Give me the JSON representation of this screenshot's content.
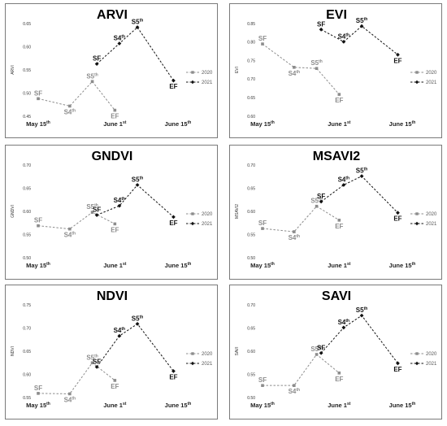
{
  "chart_data": [
    {
      "type": "line",
      "title": "ARVI",
      "ylabel": "ARVI",
      "ylim": [
        0.45,
        0.65
      ],
      "yticks": [
        "0.45",
        "0.50",
        "0.55",
        "0.60",
        "0.65"
      ],
      "x_ticks": [
        {
          "label": "May 15",
          "sup": "th",
          "x": 0
        },
        {
          "label": "June 1",
          "sup": "st",
          "x": 17
        },
        {
          "label": "June 15",
          "sup": "th",
          "x": 31
        }
      ],
      "legend": "right",
      "series": [
        {
          "name": "2020",
          "color": "#8c8c8c",
          "marker": "square",
          "points": [
            {
              "label": "SF",
              "sup": "",
              "x": 0,
              "y": 0.488
            },
            {
              "label": "S4",
              "sup": "th",
              "x": 7,
              "y": 0.472
            },
            {
              "label": "S5",
              "sup": "th",
              "x": 12,
              "y": 0.525
            },
            {
              "label": "EF",
              "sup": "",
              "x": 17,
              "y": 0.463
            }
          ]
        },
        {
          "name": "2021",
          "color": "#111111",
          "marker": "diamond",
          "points": [
            {
              "label": "SF",
              "sup": "",
              "x": 13,
              "y": 0.563
            },
            {
              "label": "S4",
              "sup": "th",
              "x": 18,
              "y": 0.607
            },
            {
              "label": "S5",
              "sup": "th",
              "x": 22,
              "y": 0.642
            },
            {
              "label": "EF",
              "sup": "",
              "x": 30,
              "y": 0.527
            }
          ]
        }
      ]
    },
    {
      "type": "line",
      "title": "EVI",
      "ylabel": "EVI",
      "ylim": [
        0.6,
        0.85
      ],
      "yticks": [
        "0.60",
        "0.65",
        "0.70",
        "0.75",
        "0.80",
        "0.85"
      ],
      "x_ticks": [
        {
          "label": "May 15",
          "sup": "th",
          "x": 0
        },
        {
          "label": "June 1",
          "sup": "st",
          "x": 17
        },
        {
          "label": "June 15",
          "sup": "th",
          "x": 31
        }
      ],
      "legend": "right",
      "series": [
        {
          "name": "2020",
          "color": "#8c8c8c",
          "marker": "square",
          "points": [
            {
              "label": "SF",
              "sup": "",
              "x": 0,
              "y": 0.795
            },
            {
              "label": "S4",
              "sup": "th",
              "x": 7,
              "y": 0.732
            },
            {
              "label": "S5",
              "sup": "th",
              "x": 12,
              "y": 0.729
            },
            {
              "label": "EF",
              "sup": "",
              "x": 17,
              "y": 0.659
            }
          ]
        },
        {
          "name": "2021",
          "color": "#111111",
          "marker": "diamond",
          "points": [
            {
              "label": "SF",
              "sup": "",
              "x": 13,
              "y": 0.834
            },
            {
              "label": "S4",
              "sup": "th",
              "x": 18,
              "y": 0.801
            },
            {
              "label": "S5",
              "sup": "th",
              "x": 22,
              "y": 0.843
            },
            {
              "label": "EF",
              "sup": "",
              "x": 30,
              "y": 0.766
            }
          ]
        }
      ]
    },
    {
      "type": "line",
      "title": "GNDVI",
      "ylabel": "GNDVI",
      "ylim": [
        0.5,
        0.7
      ],
      "yticks": [
        "0.50",
        "0.55",
        "0.60",
        "0.65",
        "0.70"
      ],
      "x_ticks": [
        {
          "label": "May 15",
          "sup": "th",
          "x": 0
        },
        {
          "label": "June 1",
          "sup": "st",
          "x": 17
        },
        {
          "label": "June 15",
          "sup": "th",
          "x": 31
        }
      ],
      "legend": "right",
      "series": [
        {
          "name": "2020",
          "color": "#8c8c8c",
          "marker": "square",
          "points": [
            {
              "label": "SF",
              "sup": "",
              "x": 0,
              "y": 0.569
            },
            {
              "label": "S4",
              "sup": "th",
              "x": 7,
              "y": 0.562
            },
            {
              "label": "S5",
              "sup": "th",
              "x": 12,
              "y": 0.598
            },
            {
              "label": "EF",
              "sup": "",
              "x": 17,
              "y": 0.573
            }
          ]
        },
        {
          "name": "2021",
          "color": "#111111",
          "marker": "diamond",
          "points": [
            {
              "label": "SF",
              "sup": "",
              "x": 13,
              "y": 0.592
            },
            {
              "label": "S4",
              "sup": "th",
              "x": 18,
              "y": 0.612
            },
            {
              "label": "S5",
              "sup": "th",
              "x": 22,
              "y": 0.657
            },
            {
              "label": "EF",
              "sup": "",
              "x": 30,
              "y": 0.588
            }
          ]
        }
      ]
    },
    {
      "type": "line",
      "title": "MSAVI2",
      "ylabel": "MSAVI2",
      "ylim": [
        0.5,
        0.7
      ],
      "yticks": [
        "0.50",
        "0.55",
        "0.60",
        "0.65",
        "0.70"
      ],
      "x_ticks": [
        {
          "label": "May 15",
          "sup": "th",
          "x": 0
        },
        {
          "label": "June 1",
          "sup": "st",
          "x": 17
        },
        {
          "label": "June 15",
          "sup": "th",
          "x": 31
        }
      ],
      "legend": "right",
      "series": [
        {
          "name": "2020",
          "color": "#8c8c8c",
          "marker": "square",
          "points": [
            {
              "label": "SF",
              "sup": "",
              "x": 0,
              "y": 0.563
            },
            {
              "label": "S4",
              "sup": "th",
              "x": 7,
              "y": 0.556
            },
            {
              "label": "S5",
              "sup": "th",
              "x": 12,
              "y": 0.611
            },
            {
              "label": "EF",
              "sup": "",
              "x": 17,
              "y": 0.581
            }
          ]
        },
        {
          "name": "2021",
          "color": "#111111",
          "marker": "diamond",
          "points": [
            {
              "label": "SF",
              "sup": "",
              "x": 13,
              "y": 0.621
            },
            {
              "label": "S4",
              "sup": "th",
              "x": 18,
              "y": 0.657
            },
            {
              "label": "S5",
              "sup": "th",
              "x": 22,
              "y": 0.676
            },
            {
              "label": "EF",
              "sup": "",
              "x": 30,
              "y": 0.597
            }
          ]
        }
      ]
    },
    {
      "type": "line",
      "title": "NDVI",
      "ylabel": "NDVI",
      "ylim": [
        0.55,
        0.75
      ],
      "yticks": [
        "0.55",
        "0.60",
        "0.65",
        "0.70",
        "0.75"
      ],
      "x_ticks": [
        {
          "label": "May 15",
          "sup": "th",
          "x": 0
        },
        {
          "label": "June 1",
          "sup": "st",
          "x": 17
        },
        {
          "label": "June 15",
          "sup": "th",
          "x": 31
        }
      ],
      "legend": "right",
      "series": [
        {
          "name": "2020",
          "color": "#8c8c8c",
          "marker": "square",
          "points": [
            {
              "label": "SF",
              "sup": "",
              "x": 0,
              "y": 0.559
            },
            {
              "label": "S4",
              "sup": "th",
              "x": 7,
              "y": 0.558
            },
            {
              "label": "S5",
              "sup": "th",
              "x": 12,
              "y": 0.625
            },
            {
              "label": "EF",
              "sup": "",
              "x": 17,
              "y": 0.587
            }
          ]
        },
        {
          "name": "2021",
          "color": "#111111",
          "marker": "diamond",
          "points": [
            {
              "label": "SF",
              "sup": "",
              "x": 13,
              "y": 0.616
            },
            {
              "label": "S4",
              "sup": "th",
              "x": 18,
              "y": 0.683
            },
            {
              "label": "S5",
              "sup": "th",
              "x": 22,
              "y": 0.709
            },
            {
              "label": "EF",
              "sup": "",
              "x": 30,
              "y": 0.607
            }
          ]
        }
      ]
    },
    {
      "type": "line",
      "title": "SAVI",
      "ylabel": "SAVI",
      "ylim": [
        0.5,
        0.7
      ],
      "yticks": [
        "0.50",
        "0.55",
        "0.60",
        "0.65",
        "0.70"
      ],
      "x_ticks": [
        {
          "label": "May 15",
          "sup": "th",
          "x": 0
        },
        {
          "label": "June 1",
          "sup": "st",
          "x": 17
        },
        {
          "label": "June 15",
          "sup": "th",
          "x": 31
        }
      ],
      "legend": "right",
      "series": [
        {
          "name": "2020",
          "color": "#8c8c8c",
          "marker": "square",
          "points": [
            {
              "label": "SF",
              "sup": "",
              "x": 0,
              "y": 0.526
            },
            {
              "label": "S4",
              "sup": "th",
              "x": 7,
              "y": 0.526
            },
            {
              "label": "S5",
              "sup": "th",
              "x": 12,
              "y": 0.593
            },
            {
              "label": "EF",
              "sup": "",
              "x": 17,
              "y": 0.553
            }
          ]
        },
        {
          "name": "2021",
          "color": "#111111",
          "marker": "diamond",
          "points": [
            {
              "label": "SF",
              "sup": "",
              "x": 13,
              "y": 0.596
            },
            {
              "label": "S4",
              "sup": "th",
              "x": 18,
              "y": 0.651
            },
            {
              "label": "S5",
              "sup": "th",
              "x": 22,
              "y": 0.677
            },
            {
              "label": "EF",
              "sup": "",
              "x": 30,
              "y": 0.574
            }
          ]
        }
      ]
    }
  ]
}
